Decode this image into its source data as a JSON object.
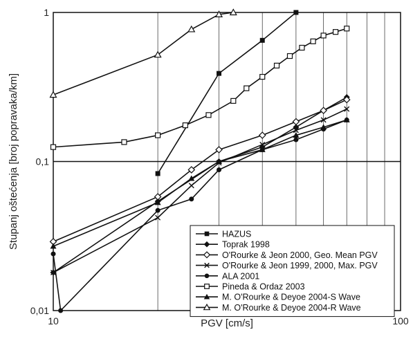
{
  "chart_data": {
    "type": "line",
    "xlabel": "PGV [cm/s]",
    "ylabel": "Stupanj oštećenja [broj popravaka/km]",
    "xscale": "log",
    "yscale": "log",
    "xlim": [
      10,
      100
    ],
    "ylim": [
      0.01,
      1
    ],
    "x_ticks": [
      "10",
      "100"
    ],
    "y_ticks": [
      "0,01",
      "0,1",
      "1"
    ],
    "grid": "vertical minor lines and major horizontal lines",
    "legend_position": "bottom-right",
    "series": [
      {
        "name": "HAZUS",
        "marker": "filled-square",
        "x": [
          20,
          30,
          40,
          50
        ],
        "y": [
          0.083,
          0.39,
          0.65,
          1.0
        ]
      },
      {
        "name": "Toprak 1998",
        "marker": "filled-diamond",
        "x": [
          10,
          20,
          30,
          40,
          50,
          60,
          70
        ],
        "y": [
          0.018,
          0.054,
          0.1,
          0.125,
          0.17,
          0.22,
          0.27
        ]
      },
      {
        "name": "O'Rourke & Jeon 2000, Geo. Mean PGV",
        "marker": "open-diamond",
        "x": [
          10,
          20,
          25,
          30,
          40,
          50,
          60,
          70
        ],
        "y": [
          0.029,
          0.058,
          0.088,
          0.12,
          0.15,
          0.185,
          0.22,
          0.26
        ]
      },
      {
        "name": "O'Rourke & Jeon 1999, 2000, Max. PGV",
        "marker": "x-mark",
        "x": [
          10,
          20,
          25,
          30,
          40,
          50,
          60,
          70
        ],
        "y": [
          0.018,
          0.042,
          0.069,
          0.098,
          0.13,
          0.162,
          0.19,
          0.225
        ]
      },
      {
        "name": "ALA 2001",
        "marker": "filled-circle",
        "x": [
          10,
          10.5,
          20,
          25,
          30,
          40,
          50,
          60,
          70
        ],
        "y": [
          0.024,
          0.01,
          0.047,
          0.056,
          0.088,
          0.12,
          0.14,
          0.165,
          0.19
        ]
      },
      {
        "name": "Pineda & Ordaz 2003",
        "marker": "open-square",
        "x": [
          10,
          16,
          20,
          24,
          28,
          33,
          36,
          40,
          44,
          48,
          52,
          56,
          60,
          65,
          70
        ],
        "y": [
          0.125,
          0.135,
          0.15,
          0.175,
          0.205,
          0.255,
          0.31,
          0.37,
          0.44,
          0.51,
          0.58,
          0.64,
          0.7,
          0.74,
          0.78
        ]
      },
      {
        "name": "M. O'Rourke & Deyoe 2004-S Wave",
        "marker": "filled-triangle",
        "x": [
          10,
          20,
          25,
          30,
          40,
          50,
          60,
          70
        ],
        "y": [
          0.027,
          0.053,
          0.077,
          0.1,
          0.12,
          0.15,
          0.17,
          0.19
        ]
      },
      {
        "name": "M. O'Rourke & Deyoe 2004-R Wave",
        "marker": "open-triangle",
        "x": [
          10,
          20,
          25,
          30,
          33
        ],
        "y": [
          0.28,
          0.52,
          0.77,
          0.97,
          1.0
        ]
      }
    ]
  }
}
